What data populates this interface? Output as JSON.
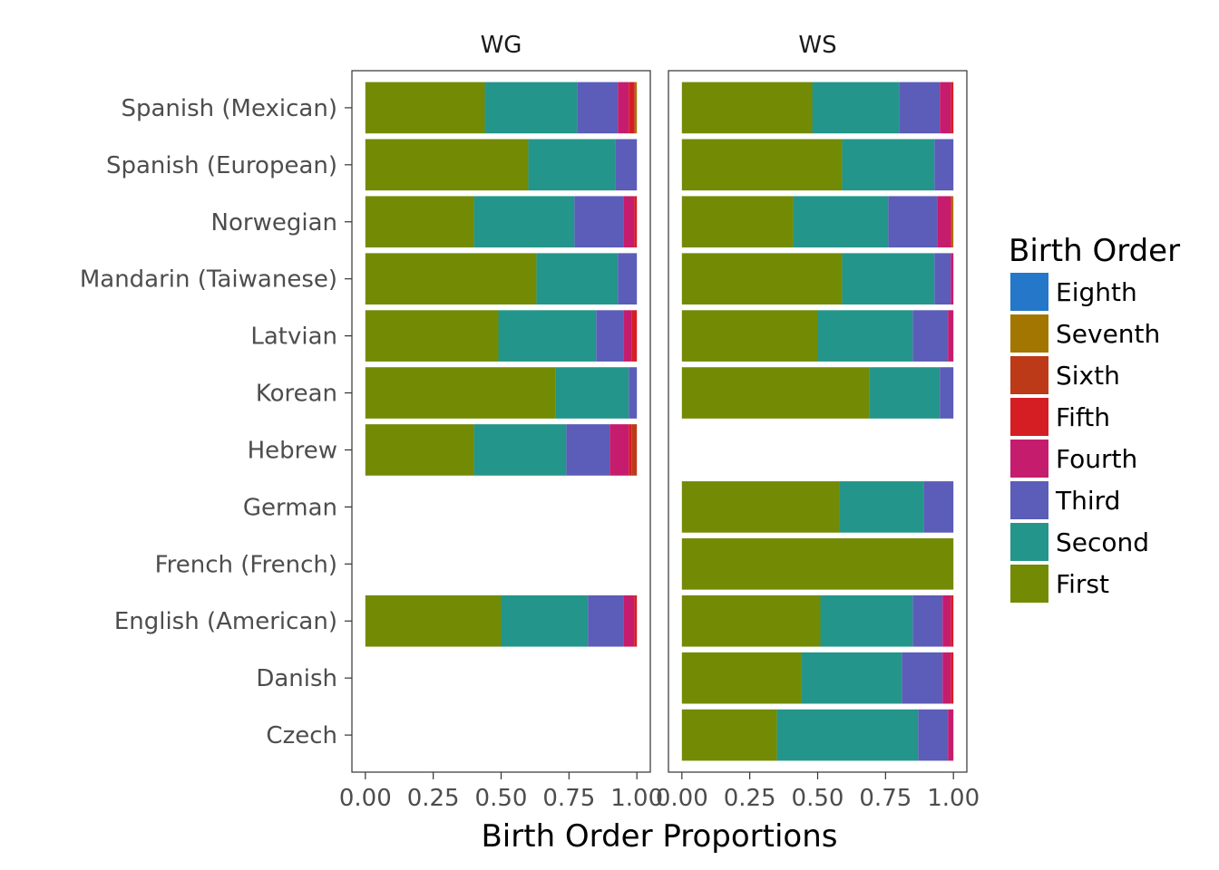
{
  "chart_data": {
    "type": "bar",
    "orientation": "horizontal",
    "stacked": true,
    "xlabel": "Birth Order Proportions",
    "ylabel": "",
    "xlim": [
      0,
      1
    ],
    "x_ticks": [
      "0.00",
      "0.25",
      "0.50",
      "0.75",
      "1.00"
    ],
    "x_tick_values": [
      0,
      0.25,
      0.5,
      0.75,
      1.0
    ],
    "grid": false,
    "legend_position": "right",
    "legend": {
      "title": "Birth Order",
      "entries": [
        {
          "name": "Eighth",
          "color": "#2477c9"
        },
        {
          "name": "Seventh",
          "color": "#a37602"
        },
        {
          "name": "Sixth",
          "color": "#bc3a17"
        },
        {
          "name": "Fifth",
          "color": "#d41e24"
        },
        {
          "name": "Fourth",
          "color": "#c61c6e"
        },
        {
          "name": "Third",
          "color": "#5b5db8"
        },
        {
          "name": "Second",
          "color": "#24958a"
        },
        {
          "name": "First",
          "color": "#738a04"
        }
      ]
    },
    "stack_order": [
      "First",
      "Second",
      "Third",
      "Fourth",
      "Fifth",
      "Sixth",
      "Seventh",
      "Eighth"
    ],
    "categories": [
      "Spanish (Mexican)",
      "Spanish (European)",
      "Norwegian",
      "Mandarin (Taiwanese)",
      "Latvian",
      "Korean",
      "Hebrew",
      "German",
      "French (French)",
      "English (American)",
      "Danish",
      "Czech"
    ],
    "panels": [
      {
        "label": "WG",
        "bars": [
          {
            "category": "Spanish (Mexican)",
            "values": {
              "First": 0.44,
              "Second": 0.34,
              "Third": 0.15,
              "Fourth": 0.04,
              "Fifth": 0.02,
              "Sixth": 0.005,
              "Seventh": 0.005
            }
          },
          {
            "category": "Spanish (European)",
            "values": {
              "First": 0.6,
              "Second": 0.32,
              "Third": 0.08
            }
          },
          {
            "category": "Norwegian",
            "values": {
              "First": 0.4,
              "Second": 0.37,
              "Third": 0.18,
              "Fourth": 0.04,
              "Fifth": 0.01
            }
          },
          {
            "category": "Mandarin (Taiwanese)",
            "values": {
              "First": 0.63,
              "Second": 0.3,
              "Third": 0.07
            }
          },
          {
            "category": "Latvian",
            "values": {
              "First": 0.49,
              "Second": 0.36,
              "Third": 0.1,
              "Fourth": 0.03,
              "Fifth": 0.02
            }
          },
          {
            "category": "Korean",
            "values": {
              "First": 0.7,
              "Second": 0.27,
              "Third": 0.03
            }
          },
          {
            "category": "Hebrew",
            "values": {
              "First": 0.4,
              "Second": 0.34,
              "Third": 0.16,
              "Fourth": 0.07,
              "Fifth": 0.01,
              "Sixth": 0.02
            }
          },
          {
            "category": "English (American)",
            "values": {
              "First": 0.5,
              "Second": 0.32,
              "Third": 0.13,
              "Fourth": 0.04,
              "Fifth": 0.01
            }
          }
        ]
      },
      {
        "label": "WS",
        "bars": [
          {
            "category": "Spanish (Mexican)",
            "values": {
              "First": 0.48,
              "Second": 0.32,
              "Third": 0.15,
              "Fourth": 0.04,
              "Fifth": 0.01
            }
          },
          {
            "category": "Spanish (European)",
            "values": {
              "First": 0.59,
              "Second": 0.34,
              "Third": 0.07
            }
          },
          {
            "category": "Norwegian",
            "values": {
              "First": 0.41,
              "Second": 0.35,
              "Third": 0.18,
              "Fourth": 0.05,
              "Fifth": 0.005,
              "Seventh": 0.005
            }
          },
          {
            "category": "Mandarin (Taiwanese)",
            "values": {
              "First": 0.59,
              "Second": 0.34,
              "Third": 0.06,
              "Fourth": 0.01
            }
          },
          {
            "category": "Latvian",
            "values": {
              "First": 0.5,
              "Second": 0.35,
              "Third": 0.13,
              "Fourth": 0.02
            }
          },
          {
            "category": "Korean",
            "values": {
              "First": 0.69,
              "Second": 0.26,
              "Third": 0.05
            }
          },
          {
            "category": "German",
            "values": {
              "First": 0.58,
              "Second": 0.31,
              "Third": 0.11
            }
          },
          {
            "category": "French (French)",
            "values": {
              "First": 1.0
            }
          },
          {
            "category": "English (American)",
            "values": {
              "First": 0.51,
              "Second": 0.34,
              "Third": 0.11,
              "Fourth": 0.03,
              "Fifth": 0.01
            }
          },
          {
            "category": "Danish",
            "values": {
              "First": 0.44,
              "Second": 0.37,
              "Third": 0.15,
              "Fourth": 0.03,
              "Fifth": 0.01
            }
          },
          {
            "category": "Czech",
            "values": {
              "First": 0.35,
              "Second": 0.52,
              "Third": 0.11,
              "Fourth": 0.02
            }
          }
        ]
      }
    ]
  }
}
